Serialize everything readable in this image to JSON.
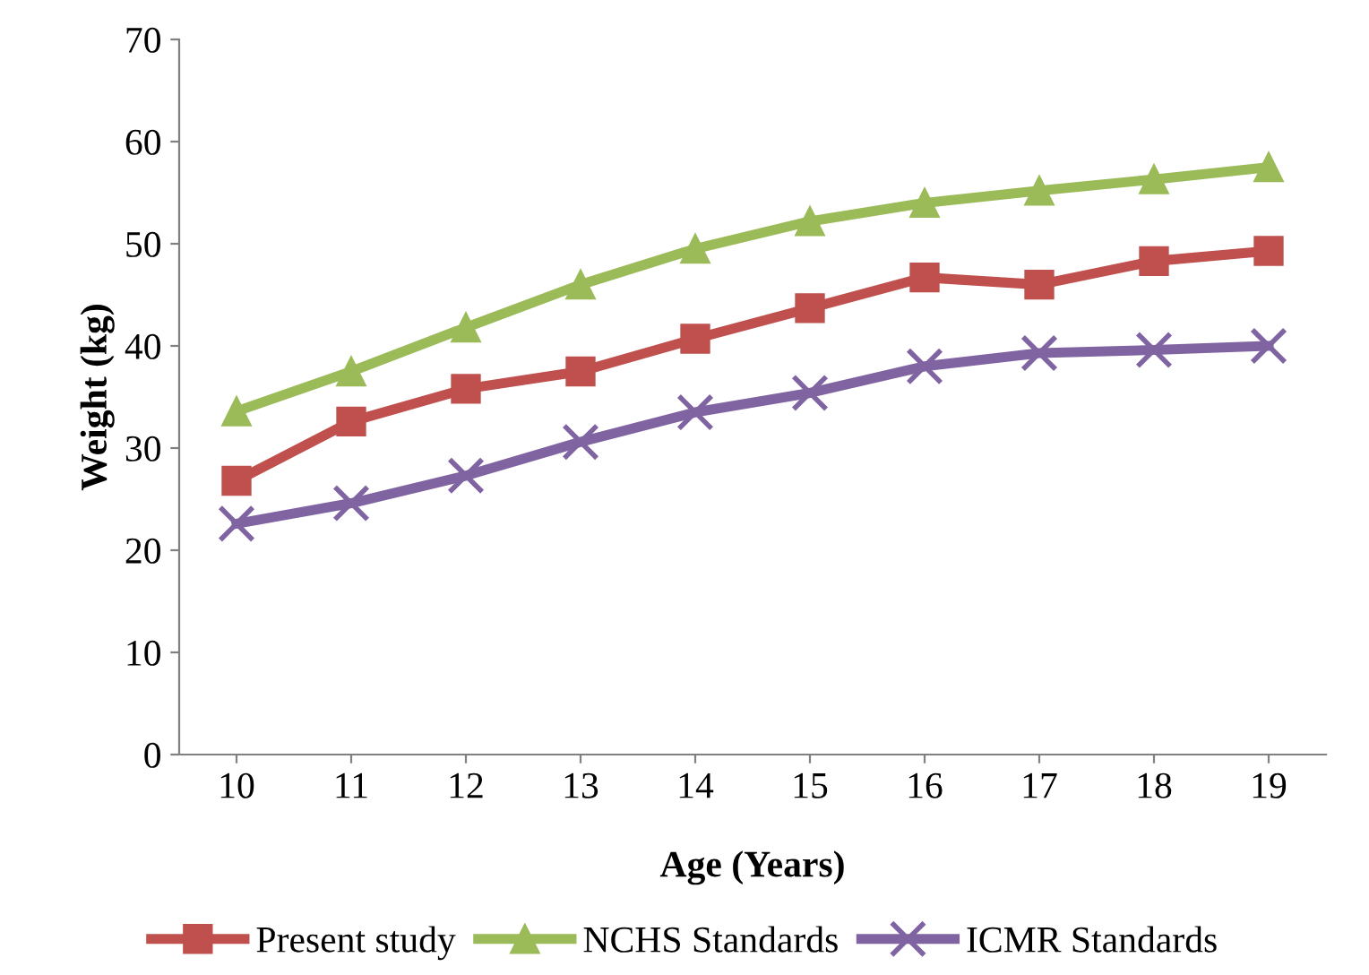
{
  "chart_data": {
    "type": "line",
    "xlabel": "Age (Years)",
    "ylabel": "Weight (kg)",
    "categories": [
      "10",
      "11",
      "12",
      "13",
      "14",
      "15",
      "16",
      "17",
      "18",
      "19"
    ],
    "series": [
      {
        "name": "Present study",
        "color": "#c0504d",
        "marker": "square",
        "values": [
          26.8,
          32.6,
          35.8,
          37.5,
          40.7,
          43.7,
          46.7,
          46.0,
          48.3,
          49.3
        ]
      },
      {
        "name": "NCHS Standards",
        "color": "#9bbb59",
        "marker": "triangle",
        "values": [
          33.6,
          37.5,
          41.8,
          46.0,
          49.5,
          52.2,
          54.0,
          55.2,
          56.3,
          57.5
        ]
      },
      {
        "name": "ICMR Standards",
        "color": "#8064a2",
        "marker": "cross",
        "values": [
          22.6,
          24.6,
          27.3,
          30.6,
          33.5,
          35.4,
          38.0,
          39.3,
          39.6,
          40.0
        ]
      }
    ],
    "ylim": [
      0,
      70
    ],
    "yticks": [
      0,
      10,
      20,
      30,
      40,
      50,
      60,
      70
    ],
    "grid": false,
    "legend": "bottom",
    "line_style": "solid"
  }
}
